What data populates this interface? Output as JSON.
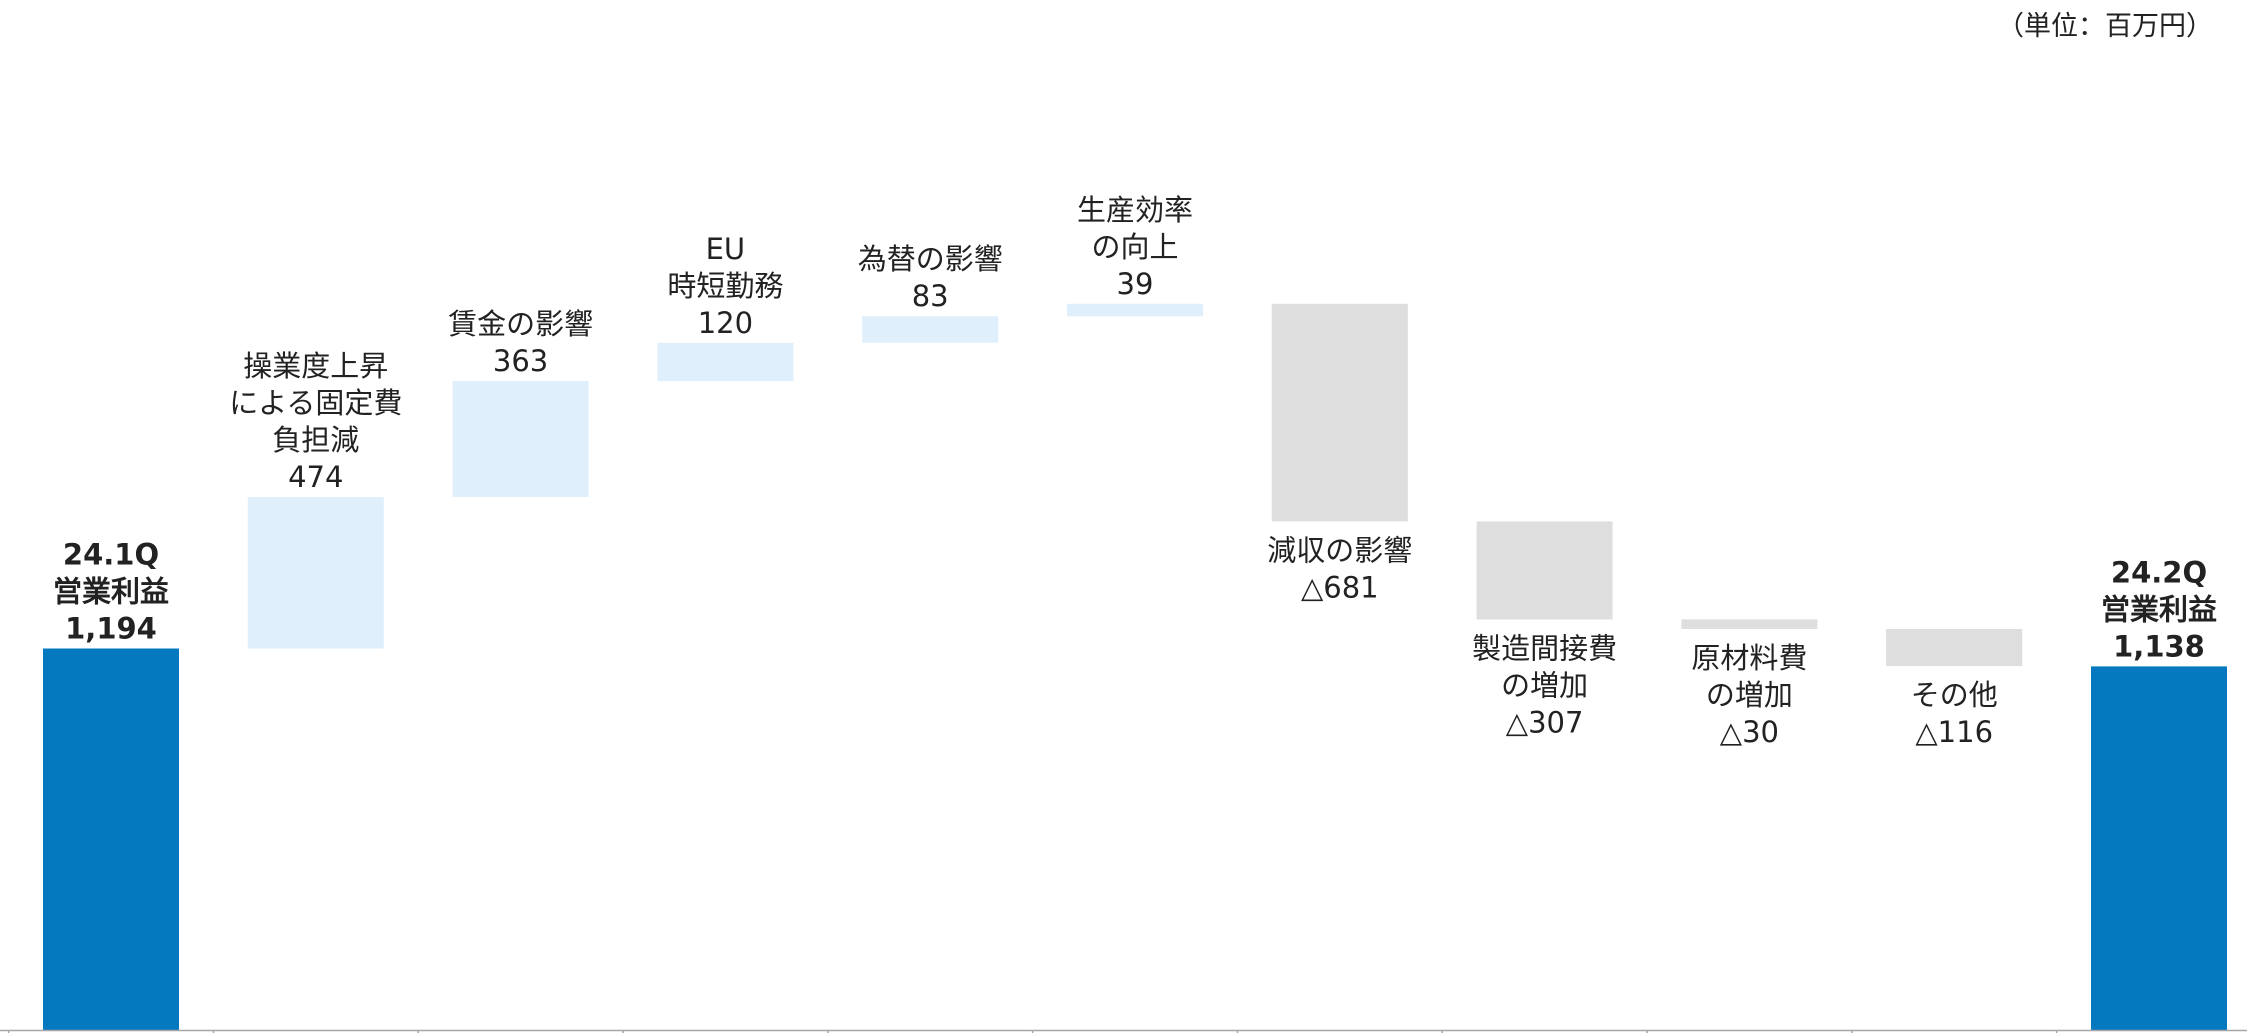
{
  "unit_note": "（単位：百万円）",
  "colors": {
    "total": "#0479c0",
    "increase": "#dfeffc",
    "decrease": "#dedede",
    "axis": "#a6a6a6",
    "text": "#222222"
  },
  "chart_data": {
    "type": "bar",
    "subtype": "waterfall",
    "ylim": [
      0,
      1880
    ],
    "grid": false,
    "legend": "none",
    "bars": [
      {
        "kind": "total",
        "label_lines": [
          "24.1Q",
          "営業利益"
        ],
        "value_label": "1,194",
        "start": 0,
        "end": 1194
      },
      {
        "kind": "increase",
        "label_lines": [
          "操業度上昇",
          "による固定費",
          "負担減"
        ],
        "value_label": "474",
        "start": 1194,
        "end": 1668
      },
      {
        "kind": "increase",
        "label_lines": [
          "賃金の影響"
        ],
        "value_label": "363",
        "start": 1668,
        "end": 2031
      },
      {
        "kind": "increase",
        "label_lines": [
          "EU",
          "時短勤務"
        ],
        "value_label": "120",
        "start": 2031,
        "end": 2151
      },
      {
        "kind": "increase",
        "label_lines": [
          "為替の影響"
        ],
        "value_label": "83",
        "start": 2151,
        "end": 2234
      },
      {
        "kind": "increase",
        "label_lines": [
          "生産効率",
          "の向上"
        ],
        "value_label": "39",
        "start": 2234,
        "end": 2273
      },
      {
        "kind": "decrease",
        "label_lines": [
          "減収の影響"
        ],
        "value_label": "△681",
        "start": 2273,
        "end": 1592
      },
      {
        "kind": "decrease",
        "label_lines": [
          "製造間接費",
          "の増加"
        ],
        "value_label": "△307",
        "start": 1592,
        "end": 1285
      },
      {
        "kind": "decrease",
        "label_lines": [
          "原材料費",
          "の増加"
        ],
        "value_label": "△30",
        "start": 1285,
        "end": 1255
      },
      {
        "kind": "decrease",
        "label_lines": [
          "その他"
        ],
        "value_label": "△116",
        "start": 1255,
        "end": 1139
      },
      {
        "kind": "total",
        "label_lines": [
          "24.2Q",
          "営業利益"
        ],
        "value_label": "1,138",
        "start": 0,
        "end": 1138
      }
    ]
  }
}
